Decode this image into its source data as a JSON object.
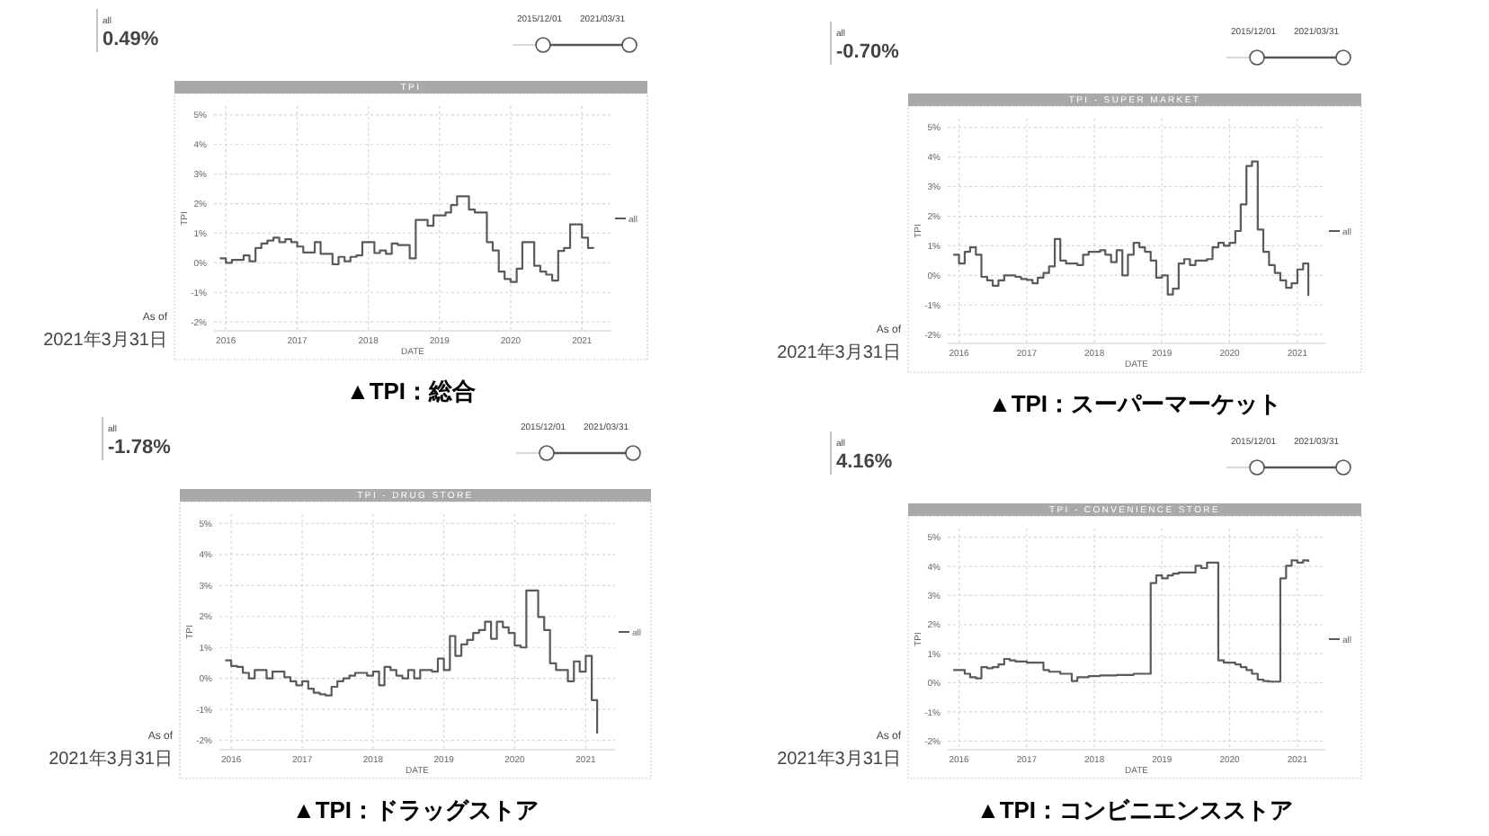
{
  "chart_data": [
    {
      "type": "step",
      "title": "TPI",
      "xlabel": "DATE",
      "ylabel": "TPI",
      "x": [
        "2015-12",
        "2016-01",
        "2016-02",
        "2016-03",
        "2016-04",
        "2016-05",
        "2016-06",
        "2016-07",
        "2016-08",
        "2016-09",
        "2016-10",
        "2016-11",
        "2016-12",
        "2017-01",
        "2017-02",
        "2017-03",
        "2017-04",
        "2017-05",
        "2017-06",
        "2017-07",
        "2017-08",
        "2017-09",
        "2017-10",
        "2017-11",
        "2017-12",
        "2018-01",
        "2018-02",
        "2018-03",
        "2018-04",
        "2018-05",
        "2018-06",
        "2018-07",
        "2018-08",
        "2018-09",
        "2018-10",
        "2018-11",
        "2018-12",
        "2019-01",
        "2019-02",
        "2019-03",
        "2019-04",
        "2019-05",
        "2019-06",
        "2019-07",
        "2019-08",
        "2019-09",
        "2019-10",
        "2019-11",
        "2019-12",
        "2020-01",
        "2020-02",
        "2020-03",
        "2020-04",
        "2020-05",
        "2020-06",
        "2020-07",
        "2020-08",
        "2020-09",
        "2020-10",
        "2020-11",
        "2020-12",
        "2021-01",
        "2021-02",
        "2021-03"
      ],
      "series": [
        {
          "name": "all",
          "color": "#5a5a5a",
          "values": [
            0.15,
            0.0,
            0.1,
            0.1,
            0.25,
            0.05,
            0.5,
            0.65,
            0.75,
            0.85,
            0.7,
            0.8,
            0.7,
            0.55,
            0.35,
            0.35,
            0.7,
            0.3,
            0.3,
            -0.05,
            0.2,
            0.05,
            0.2,
            0.25,
            0.7,
            0.7,
            0.33,
            0.42,
            0.3,
            0.65,
            0.6,
            0.6,
            0.15,
            1.45,
            1.45,
            1.25,
            1.6,
            1.6,
            1.7,
            1.95,
            2.25,
            2.25,
            1.8,
            1.7,
            1.7,
            0.7,
            0.42,
            -0.3,
            -0.55,
            -0.65,
            -0.2,
            0.7,
            0.7,
            -0.1,
            -0.3,
            -0.4,
            -0.6,
            0.4,
            0.5,
            1.3,
            1.3,
            0.85,
            0.5,
            0.49
          ]
        }
      ],
      "xlim": [
        "2015-11",
        "2021-06"
      ],
      "xticks": [
        "2016",
        "2017",
        "2018",
        "2019",
        "2020",
        "2021"
      ],
      "ylim": [
        -2.3,
        5.3
      ],
      "yticks": [
        {
          "value": -2,
          "label": "-2%"
        },
        {
          "value": -1,
          "label": "-1%"
        },
        {
          "value": 0,
          "label": "0%"
        },
        {
          "value": 1,
          "label": "1%"
        },
        {
          "value": 2,
          "label": "2%"
        },
        {
          "value": 3,
          "label": "3%"
        },
        {
          "value": 4,
          "label": "4%"
        },
        {
          "value": 5,
          "label": "5%"
        }
      ],
      "grid": true,
      "legend": "right",
      "annotations": [
        "all",
        "0.49%",
        "2015/12/01",
        "2021/03/31",
        "As of",
        "2021年3月31日",
        "▲TPI：総合"
      ]
    },
    {
      "type": "step",
      "title": "TPI - SUPER MARKET",
      "xlabel": "DATE",
      "ylabel": "TPI",
      "x": [
        "2015-12",
        "2016-01",
        "2016-02",
        "2016-03",
        "2016-04",
        "2016-05",
        "2016-06",
        "2016-07",
        "2016-08",
        "2016-09",
        "2016-10",
        "2016-11",
        "2016-12",
        "2017-01",
        "2017-02",
        "2017-03",
        "2017-04",
        "2017-05",
        "2017-06",
        "2017-07",
        "2017-08",
        "2017-09",
        "2017-10",
        "2017-11",
        "2017-12",
        "2018-01",
        "2018-02",
        "2018-03",
        "2018-04",
        "2018-05",
        "2018-06",
        "2018-07",
        "2018-08",
        "2018-09",
        "2018-10",
        "2018-11",
        "2018-12",
        "2019-01",
        "2019-02",
        "2019-03",
        "2019-04",
        "2019-05",
        "2019-06",
        "2019-07",
        "2019-08",
        "2019-09",
        "2019-10",
        "2019-11",
        "2019-12",
        "2020-01",
        "2020-02",
        "2020-03",
        "2020-04",
        "2020-05",
        "2020-06",
        "2020-07",
        "2020-08",
        "2020-09",
        "2020-10",
        "2020-11",
        "2020-12",
        "2021-01",
        "2021-02",
        "2021-03"
      ],
      "series": [
        {
          "name": "all",
          "color": "#5a5a5a",
          "values": [
            0.7,
            0.4,
            0.8,
            0.95,
            0.7,
            -0.05,
            -0.17,
            -0.35,
            -0.17,
            0,
            0,
            -0.05,
            -0.12,
            -0.15,
            -0.27,
            -0.08,
            0.08,
            0.3,
            1.23,
            0.5,
            0.4,
            0.4,
            0.35,
            0.7,
            0.8,
            0.8,
            0.85,
            0.7,
            0.45,
            0.85,
            0,
            0.7,
            1.1,
            0.95,
            0.8,
            0.5,
            -0.08,
            0,
            -0.65,
            -0.45,
            0.4,
            0.55,
            0.35,
            0.5,
            0.5,
            0.55,
            0.95,
            1.1,
            1.0,
            1.1,
            1.5,
            2.4,
            3.7,
            3.85,
            1.55,
            0.8,
            0.35,
            0.08,
            -0.17,
            -0.42,
            -0.27,
            0.2,
            0.4,
            -0.7
          ]
        }
      ],
      "xlim": [
        "2015-11",
        "2021-06"
      ],
      "xticks": [
        "2016",
        "2017",
        "2018",
        "2019",
        "2020",
        "2021"
      ],
      "ylim": [
        -2.3,
        5.3
      ],
      "yticks": [
        {
          "value": -2,
          "label": "-2%"
        },
        {
          "value": -1,
          "label": "-1%"
        },
        {
          "value": 0,
          "label": "0%"
        },
        {
          "value": 1,
          "label": "1%"
        },
        {
          "value": 2,
          "label": "2%"
        },
        {
          "value": 3,
          "label": "3%"
        },
        {
          "value": 4,
          "label": "4%"
        },
        {
          "value": 5,
          "label": "5%"
        }
      ],
      "grid": true,
      "legend": "right",
      "annotations": [
        "all",
        "-0.70%",
        "2015/12/01",
        "2021/03/31",
        "As of",
        "2021年3月31日",
        "▲TPI：スーパーマーケット"
      ]
    },
    {
      "type": "step",
      "title": "TPI - DRUG STORE",
      "xlabel": "DATE",
      "ylabel": "TPI",
      "x": [
        "2015-12",
        "2016-01",
        "2016-02",
        "2016-03",
        "2016-04",
        "2016-05",
        "2016-06",
        "2016-07",
        "2016-08",
        "2016-09",
        "2016-10",
        "2016-11",
        "2016-12",
        "2017-01",
        "2017-02",
        "2017-03",
        "2017-04",
        "2017-05",
        "2017-06",
        "2017-07",
        "2017-08",
        "2017-09",
        "2017-10",
        "2017-11",
        "2017-12",
        "2018-01",
        "2018-02",
        "2018-03",
        "2018-04",
        "2018-05",
        "2018-06",
        "2018-07",
        "2018-08",
        "2018-09",
        "2018-10",
        "2018-11",
        "2018-12",
        "2019-01",
        "2019-02",
        "2019-03",
        "2019-04",
        "2019-05",
        "2019-06",
        "2019-07",
        "2019-08",
        "2019-09",
        "2019-10",
        "2019-11",
        "2019-12",
        "2020-01",
        "2020-02",
        "2020-03",
        "2020-04",
        "2020-05",
        "2020-06",
        "2020-07",
        "2020-08",
        "2020-09",
        "2020-10",
        "2020-11",
        "2020-12",
        "2021-01",
        "2021-02",
        "2021-03"
      ],
      "series": [
        {
          "name": "all",
          "color": "#5a5a5a",
          "values": [
            0.58,
            0.4,
            0.37,
            0.18,
            0,
            0.27,
            0.27,
            0,
            0.22,
            0.22,
            0.04,
            -0.09,
            -0.22,
            -0.09,
            -0.33,
            -0.46,
            -0.51,
            -0.55,
            -0.27,
            -0.09,
            0,
            0.09,
            0.18,
            0.18,
            0.09,
            0.22,
            -0.22,
            0.37,
            0.27,
            0.09,
            0,
            0.27,
            0,
            0.27,
            0.27,
            0.22,
            0.64,
            0.27,
            1.37,
            0.73,
            1.1,
            1.24,
            1.47,
            1.56,
            1.83,
            1.28,
            1.83,
            1.65,
            1.47,
            1.06,
            1.0,
            2.84,
            2.84,
            1.98,
            1.56,
            0.49,
            0.27,
            0.27,
            -0.09,
            0.55,
            0.22,
            0.73,
            -0.7,
            -1.78
          ]
        }
      ],
      "xlim": [
        "2015-11",
        "2021-06"
      ],
      "xticks": [
        "2016",
        "2017",
        "2018",
        "2019",
        "2020",
        "2021"
      ],
      "ylim": [
        -2.3,
        5.3
      ],
      "yticks": [
        {
          "value": -2,
          "label": "-2%"
        },
        {
          "value": -1,
          "label": "-1%"
        },
        {
          "value": 0,
          "label": "0%"
        },
        {
          "value": 1,
          "label": "1%"
        },
        {
          "value": 2,
          "label": "2%"
        },
        {
          "value": 3,
          "label": "3%"
        },
        {
          "value": 4,
          "label": "4%"
        },
        {
          "value": 5,
          "label": "5%"
        }
      ],
      "grid": true,
      "legend": "right",
      "annotations": [
        "all",
        "-1.78%",
        "2015/12/01",
        "2021/03/31",
        "As of",
        "2021年3月31日",
        "▲TPI：ドラッグストア"
      ]
    },
    {
      "type": "step",
      "title": "TPI - CONVENIENCE STORE",
      "xlabel": "DATE",
      "ylabel": "TPI",
      "x": [
        "2015-12",
        "2016-01",
        "2016-02",
        "2016-03",
        "2016-04",
        "2016-05",
        "2016-06",
        "2016-07",
        "2016-08",
        "2016-09",
        "2016-10",
        "2016-11",
        "2016-12",
        "2017-01",
        "2017-02",
        "2017-03",
        "2017-04",
        "2017-05",
        "2017-06",
        "2017-07",
        "2017-08",
        "2017-09",
        "2017-10",
        "2017-11",
        "2017-12",
        "2018-01",
        "2018-02",
        "2018-03",
        "2018-04",
        "2018-05",
        "2018-06",
        "2018-07",
        "2018-08",
        "2018-09",
        "2018-10",
        "2018-11",
        "2018-12",
        "2019-01",
        "2019-02",
        "2019-03",
        "2019-04",
        "2019-05",
        "2019-06",
        "2019-07",
        "2019-08",
        "2019-09",
        "2019-10",
        "2019-11",
        "2019-12",
        "2020-01",
        "2020-02",
        "2020-03",
        "2020-04",
        "2020-05",
        "2020-06",
        "2020-07",
        "2020-08",
        "2020-09",
        "2020-10",
        "2020-11",
        "2020-12",
        "2021-01",
        "2021-02",
        "2021-03"
      ],
      "series": [
        {
          "name": "all",
          "color": "#5a5a5a",
          "values": [
            0.44,
            0.44,
            0.31,
            0.19,
            0.15,
            0.54,
            0.5,
            0.54,
            0.63,
            0.82,
            0.77,
            0.73,
            0.73,
            0.69,
            0.69,
            0.69,
            0.44,
            0.38,
            0.38,
            0.31,
            0.31,
            0.06,
            0.19,
            0.19,
            0.23,
            0.23,
            0.25,
            0.25,
            0.25,
            0.27,
            0.27,
            0.27,
            0.31,
            0.31,
            0.31,
            3.43,
            3.69,
            3.59,
            3.69,
            3.75,
            3.79,
            3.79,
            3.79,
            4.02,
            3.94,
            4.13,
            4.13,
            0.77,
            0.69,
            0.69,
            0.63,
            0.54,
            0.44,
            0.31,
            0.11,
            0.06,
            0.04,
            0.04,
            3.59,
            4.02,
            4.21,
            4.13,
            4.21,
            4.16
          ]
        }
      ],
      "xlim": [
        "2015-11",
        "2021-06"
      ],
      "xticks": [
        "2016",
        "2017",
        "2018",
        "2019",
        "2020",
        "2021"
      ],
      "ylim": [
        -2.3,
        5.3
      ],
      "yticks": [
        {
          "value": -2,
          "label": "-2%"
        },
        {
          "value": -1,
          "label": "-1%"
        },
        {
          "value": 0,
          "label": "0%"
        },
        {
          "value": 1,
          "label": "1%"
        },
        {
          "value": 2,
          "label": "2%"
        },
        {
          "value": 3,
          "label": "3%"
        },
        {
          "value": 4,
          "label": "4%"
        },
        {
          "value": 5,
          "label": "5%"
        }
      ],
      "grid": true,
      "legend": "right",
      "annotations": [
        "all",
        "4.16%",
        "2015/12/01",
        "2021/03/31",
        "As of",
        "2021年3月31日",
        "▲TPI：コンビニエンスストア"
      ]
    }
  ]
}
